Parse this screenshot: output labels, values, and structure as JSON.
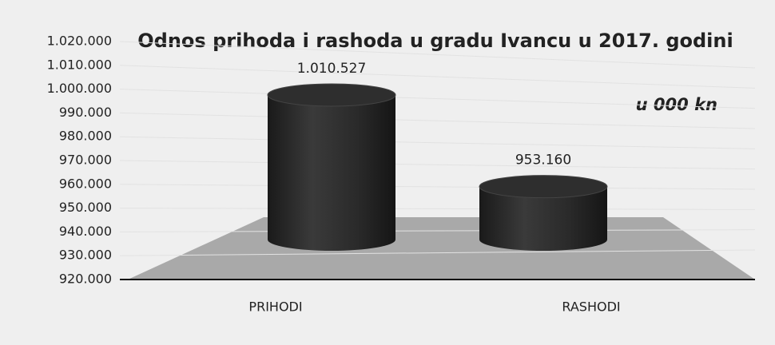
{
  "chart_data": {
    "type": "bar3d",
    "title": "Odnos prihoda i rashoda u gradu Ivancu u 2017. godini",
    "annotation": "u 000 kn",
    "categories": [
      "PRIHODI",
      "RASHODI"
    ],
    "values": [
      1010527,
      953160
    ],
    "value_labels": [
      "1.010.527",
      "953.160"
    ],
    "color": "#2b2b2b",
    "ylim": [
      920000,
      1020000
    ],
    "yticks": [
      {
        "value": 920000,
        "label": "920.000"
      },
      {
        "value": 930000,
        "label": "930.000"
      },
      {
        "value": 940000,
        "label": "940.000"
      },
      {
        "value": 950000,
        "label": "950.000"
      },
      {
        "value": 960000,
        "label": "960.000"
      },
      {
        "value": 970000,
        "label": "970.000"
      },
      {
        "value": 980000,
        "label": "980.000"
      },
      {
        "value": 990000,
        "label": "990.000"
      },
      {
        "value": 1000000,
        "label": "1.000.000"
      },
      {
        "value": 1010000,
        "label": "1.010.000"
      },
      {
        "value": 1020000,
        "label": "1.020.000"
      }
    ],
    "grid": true
  }
}
